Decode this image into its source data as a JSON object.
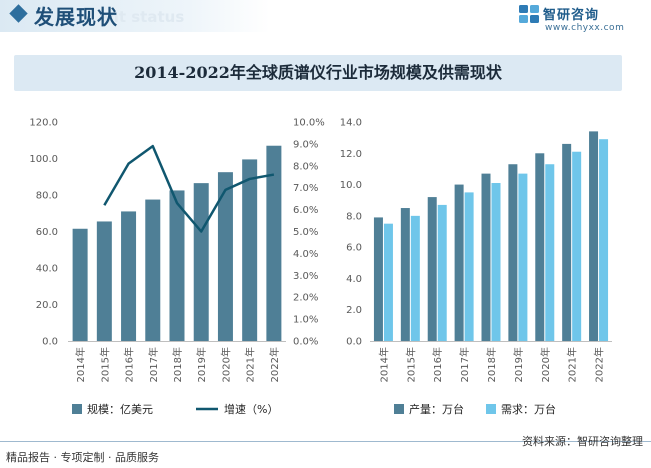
{
  "header": {
    "title": "发展现状",
    "subtitle": "ent status"
  },
  "brand": {
    "name": "智研咨询",
    "url": "www.chyxx.com"
  },
  "chart_title": "2014-2022年全球质谱仪行业市场规模及供需现状",
  "chart_data": [
    {
      "type": "bar",
      "categories": [
        "2014年",
        "2015年",
        "2016年",
        "2017年",
        "2018年",
        "2019年",
        "2020年",
        "2021年",
        "2022年"
      ],
      "series": [
        {
          "name": "规模：亿美元",
          "type": "bar",
          "axis": "left",
          "color": "#4f7f96",
          "values": [
            61.5,
            65.5,
            71.0,
            77.5,
            82.5,
            86.5,
            92.5,
            99.5,
            107.0
          ]
        },
        {
          "name": "增速（%）",
          "type": "line",
          "axis": "right",
          "color": "#10576f",
          "values": [
            null,
            6.2,
            8.1,
            8.9,
            6.3,
            5.0,
            6.9,
            7.4,
            7.6
          ]
        }
      ],
      "left_axis": {
        "min": 0,
        "max": 120,
        "ticks": [
          "0.0",
          "20.0",
          "40.0",
          "60.0",
          "80.0",
          "100.0",
          "120.0"
        ]
      },
      "right_axis": {
        "min": 0,
        "max": 10,
        "ticks": [
          "0.0%",
          "1.0%",
          "2.0%",
          "3.0%",
          "4.0%",
          "5.0%",
          "6.0%",
          "7.0%",
          "8.0%",
          "9.0%",
          "10.0%"
        ]
      },
      "legend_position": "bottom",
      "grid": false
    },
    {
      "type": "bar",
      "categories": [
        "2014年",
        "2015年",
        "2016年",
        "2017年",
        "2018年",
        "2019年",
        "2020年",
        "2021年",
        "2022年"
      ],
      "series": [
        {
          "name": "产量：万台",
          "color": "#4f7f96",
          "values": [
            7.9,
            8.5,
            9.2,
            10.0,
            10.7,
            11.3,
            12.0,
            12.6,
            13.4
          ]
        },
        {
          "name": "需求：万台",
          "color": "#6fc6ea",
          "values": [
            7.5,
            8.0,
            8.7,
            9.5,
            10.1,
            10.7,
            11.3,
            12.1,
            12.9
          ]
        }
      ],
      "y_axis": {
        "min": 0,
        "max": 14,
        "ticks": [
          "0.0",
          "2.0",
          "4.0",
          "6.0",
          "8.0",
          "10.0",
          "12.0",
          "14.0"
        ]
      },
      "legend_position": "bottom",
      "grid": false
    }
  ],
  "footer": {
    "left": "精品报告 · 专项定制 · 品质服务",
    "source": "资料来源：智研咨询整理"
  }
}
